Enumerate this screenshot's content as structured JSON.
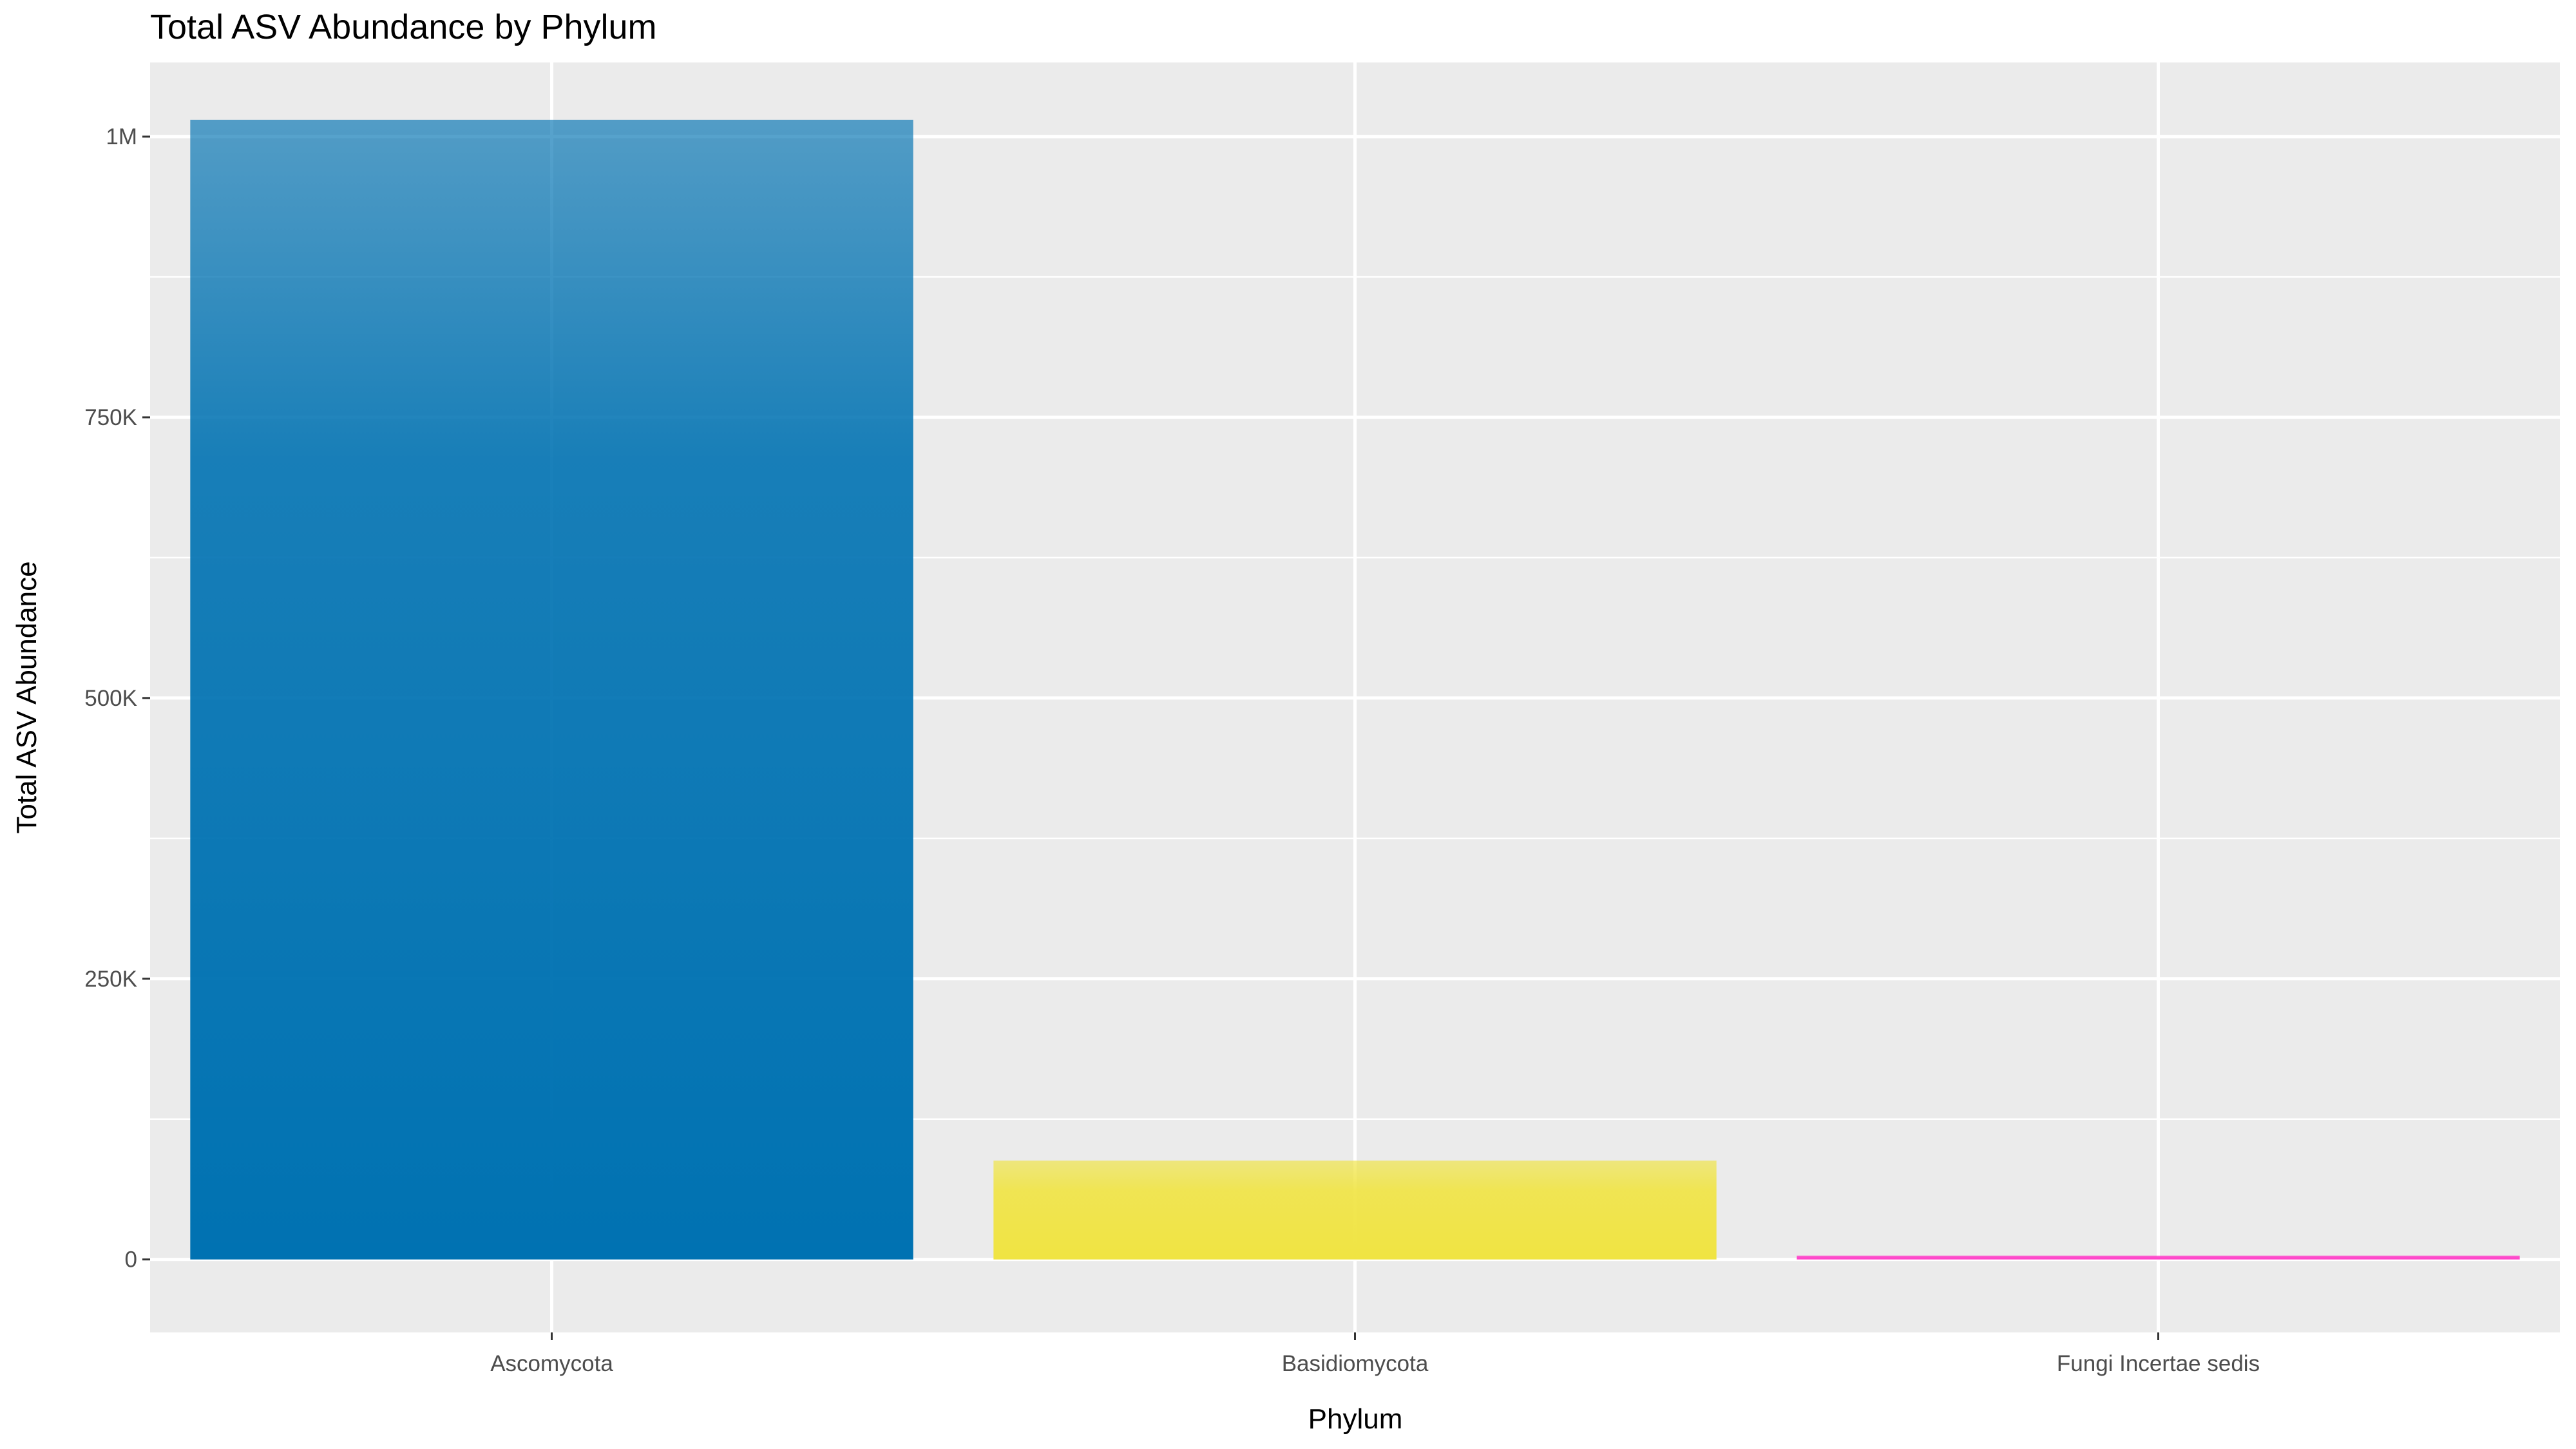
{
  "chart_data": {
    "type": "bar",
    "title": "Total ASV Abundance by Phylum",
    "xlabel": "Phylum",
    "ylabel": "Total ASV Abundance",
    "categories": [
      "Ascomycota",
      "Basidiomycota",
      "Fungi Incertae sedis"
    ],
    "values": [
      1015000,
      88000,
      3000
    ],
    "colors": [
      "#0072b2",
      "#f0e442",
      "#ff3ec8"
    ],
    "ylim": [
      -65000,
      1066000
    ],
    "yticks": [
      0,
      250000,
      500000,
      750000,
      1000000
    ],
    "ytick_labels": [
      "0",
      "250K",
      "500K",
      "750K",
      "1M"
    ],
    "grid": true,
    "legend": "none",
    "panel_background": "#ebebeb",
    "grid_color": "#ffffff"
  }
}
